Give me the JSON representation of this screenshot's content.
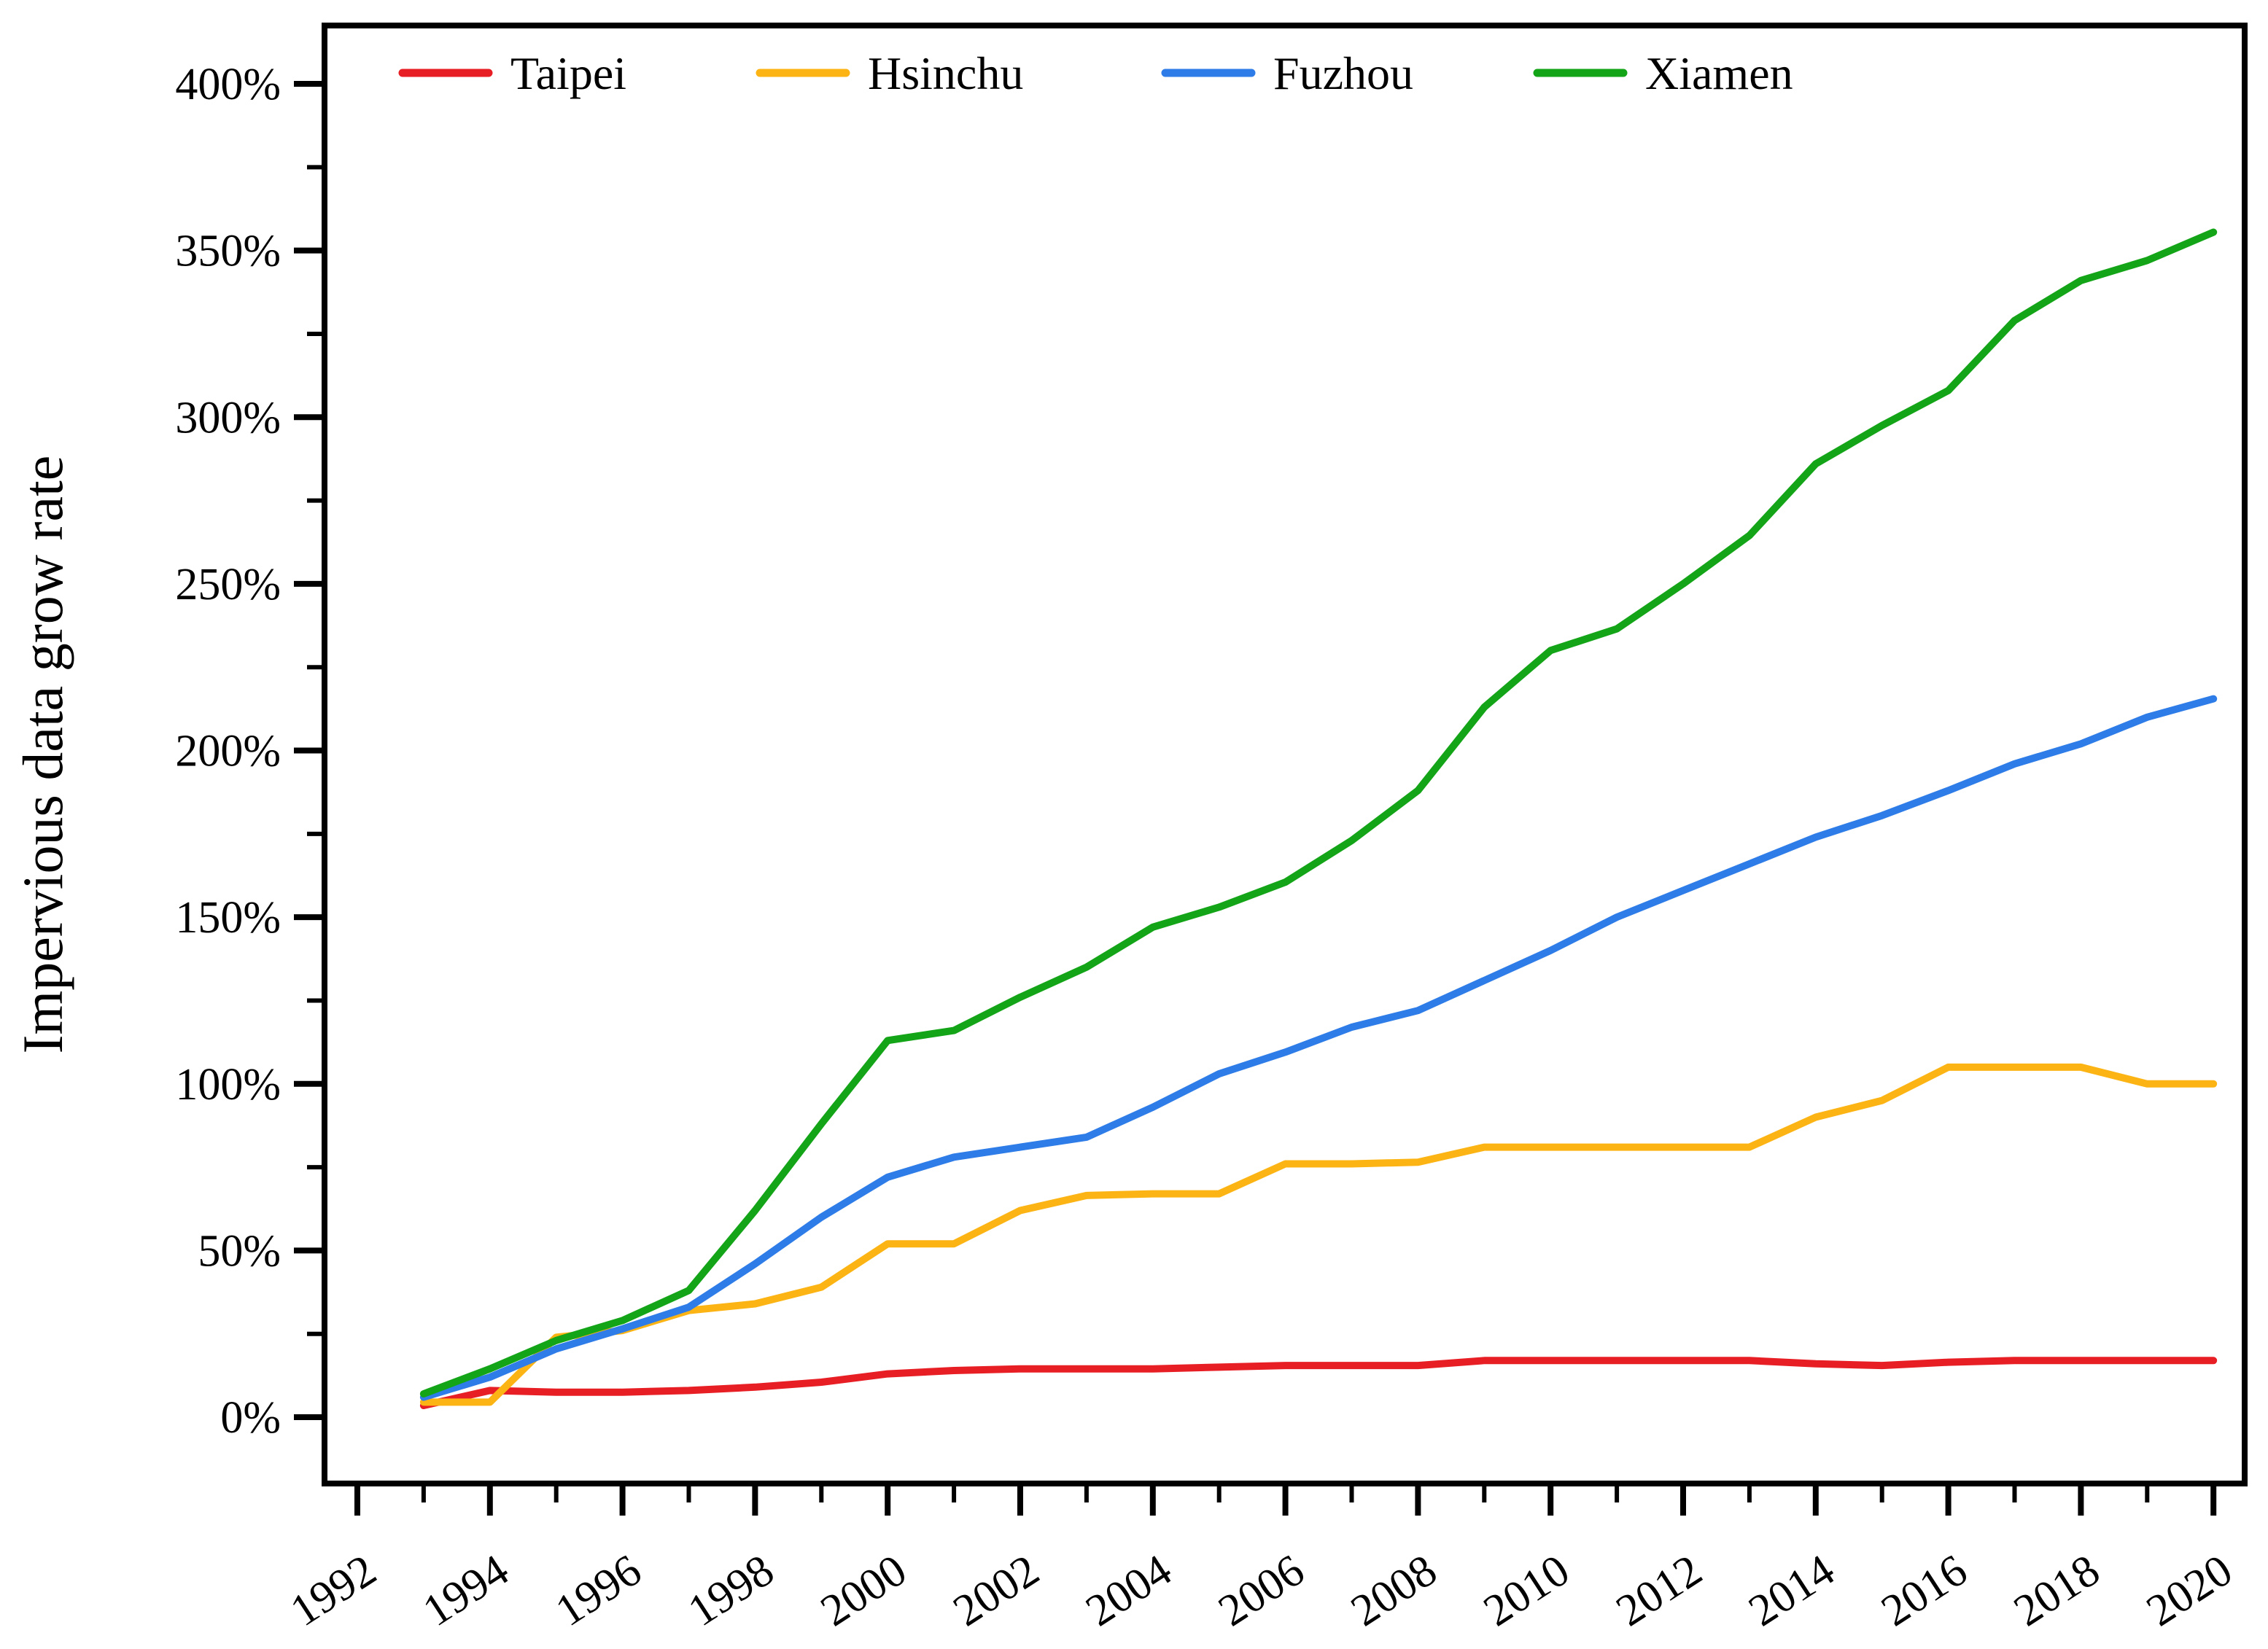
{
  "figure": {
    "background": "#ffffff",
    "frame_color": "#000000"
  },
  "axes": {
    "y_axis_title": "Impervious data grow rate",
    "y_tick_labels": [
      "0%",
      "50%",
      "100%",
      "150%",
      "200%",
      "250%",
      "300%",
      "350%",
      "400%"
    ],
    "x_tick_labels": [
      "1992",
      "1994",
      "1996",
      "1998",
      "2000",
      "2002",
      "2004",
      "2006",
      "2008",
      "2010",
      "2012",
      "2014",
      "2016",
      "2018",
      "2020"
    ]
  },
  "legend": {
    "items": [
      {
        "label": "Taipei",
        "color": "#e81e25"
      },
      {
        "label": "Hsinchu",
        "color": "#fcb414"
      },
      {
        "label": "Fuzhou",
        "color": "#2e7ce8"
      },
      {
        "label": "Xiamen",
        "color": "#13a417"
      }
    ]
  },
  "chart_data": {
    "type": "line",
    "title": "",
    "xlabel": "",
    "ylabel": "Impervious data grow rate",
    "x": [
      1993,
      1994,
      1995,
      1996,
      1997,
      1998,
      1999,
      2000,
      2001,
      2002,
      2003,
      2004,
      2005,
      2006,
      2007,
      2008,
      2009,
      2010,
      2011,
      2012,
      2013,
      2014,
      2015,
      2016,
      2017,
      2018,
      2019,
      2020
    ],
    "series": [
      {
        "name": "Taipei",
        "color": "#e81e25",
        "values": [
          3.5,
          8,
          7.5,
          7.5,
          8,
          9,
          10.5,
          13,
          14,
          14.5,
          14.5,
          14.5,
          15,
          15.5,
          15.5,
          15.5,
          17,
          17,
          17,
          17,
          17,
          16,
          15.5,
          16.5,
          17,
          17,
          17,
          17
        ]
      },
      {
        "name": "Hsinchu",
        "color": "#fcb414",
        "values": [
          4.5,
          4.5,
          24,
          26,
          32,
          34,
          39,
          52,
          52,
          62,
          66.5,
          67,
          67,
          76,
          76,
          76.5,
          81,
          81,
          81,
          81,
          81,
          90,
          95,
          105,
          105,
          105,
          100,
          100
        ]
      },
      {
        "name": "Fuzhou",
        "color": "#2e7ce8",
        "values": [
          6,
          12,
          20.5,
          26.5,
          33,
          46,
          60,
          72,
          78,
          81,
          84,
          93,
          103,
          109.5,
          117,
          122,
          131,
          140,
          150,
          158,
          166,
          174,
          180.5,
          188,
          196,
          202,
          210,
          215.5
        ]
      },
      {
        "name": "Xiamen",
        "color": "#13a417",
        "values": [
          7,
          14.5,
          23,
          29,
          38,
          62,
          88,
          113,
          116,
          126,
          135,
          147,
          153,
          160.5,
          173,
          188,
          213,
          230,
          236.5,
          250,
          264.5,
          286,
          297.5,
          308,
          329,
          341,
          347,
          355.5
        ]
      }
    ],
    "xlim": [
      1991.5,
      2020.5
    ],
    "ylim": [
      -20,
      417
    ],
    "x_major_ticks": [
      1992,
      1994,
      1996,
      1998,
      2000,
      2002,
      2004,
      2006,
      2008,
      2010,
      2012,
      2014,
      2016,
      2018,
      2020
    ],
    "x_minor_ticks": [
      1993,
      1995,
      1997,
      1999,
      2001,
      2003,
      2005,
      2007,
      2009,
      2011,
      2013,
      2015,
      2017,
      2019
    ],
    "y_major_ticks": [
      0,
      50,
      100,
      150,
      200,
      250,
      300,
      350,
      400
    ],
    "y_minor_ticks": [
      25,
      75,
      125,
      175,
      225,
      275,
      325,
      375
    ],
    "y_tick_format": "percent",
    "grid": false,
    "legend_position": "inside-top-left"
  }
}
